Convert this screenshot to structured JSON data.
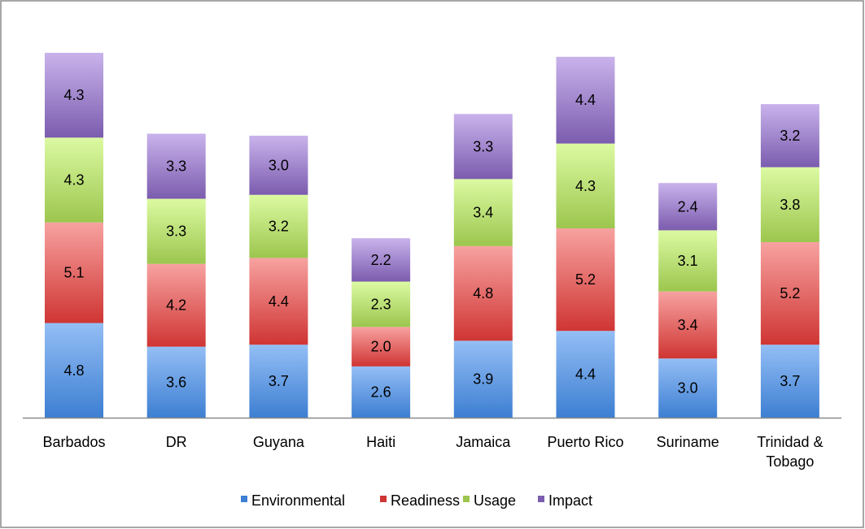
{
  "chart_data": {
    "type": "bar",
    "stacked": true,
    "title": "",
    "xlabel": "",
    "ylabel": "",
    "categories": [
      "Barbados",
      "DR",
      "Guyana",
      "Haiti",
      "Jamaica",
      "Puerto Rico",
      "Suriname",
      "Trinidad & Tobago"
    ],
    "category_lines": [
      [
        "Barbados"
      ],
      [
        "DR"
      ],
      [
        "Guyana"
      ],
      [
        "Haiti"
      ],
      [
        "Jamaica"
      ],
      [
        "Puerto Rico"
      ],
      [
        "Suriname"
      ],
      [
        "Trinidad &",
        "Tobago"
      ]
    ],
    "series": [
      {
        "name": "Environmental",
        "values": [
          4.8,
          3.6,
          3.7,
          2.6,
          3.9,
          4.4,
          3.0,
          3.7
        ],
        "labels": [
          "4.8",
          "3.6",
          "3.7",
          "2.6",
          "3.9",
          "4.4",
          "3.0",
          "3.7"
        ],
        "color_top": "#94bef5",
        "color_bottom": "#3d7fd2"
      },
      {
        "name": "Readiness",
        "values": [
          5.1,
          4.2,
          4.4,
          2.0,
          4.8,
          5.2,
          3.4,
          5.2
        ],
        "labels": [
          "5.1",
          "4.2",
          "4.4",
          "2.0",
          "4.8",
          "5.2",
          "3.4",
          "5.2"
        ],
        "color_top": "#f7a2a0",
        "color_bottom": "#cf3533"
      },
      {
        "name": "Usage",
        "values": [
          4.3,
          3.3,
          3.2,
          2.3,
          3.4,
          4.3,
          3.1,
          3.8
        ],
        "labels": [
          "4.3",
          "3.3",
          "3.2",
          "2.3",
          "3.4",
          "4.3",
          "3.1",
          "3.8"
        ],
        "color_top": "#dcfaa2",
        "color_bottom": "#9cc64e"
      },
      {
        "name": "Impact",
        "values": [
          4.3,
          3.3,
          3.0,
          2.2,
          3.3,
          4.4,
          2.4,
          3.2
        ],
        "labels": [
          "4.3",
          "3.3",
          "3.0",
          "2.2",
          "3.3",
          "4.4",
          "2.4",
          "3.2"
        ],
        "color_top": "#c9b3ec",
        "color_bottom": "#7b5cae"
      }
    ],
    "ylim": [
      0,
      18.5
    ],
    "grid": false,
    "legend_position": "bottom"
  }
}
